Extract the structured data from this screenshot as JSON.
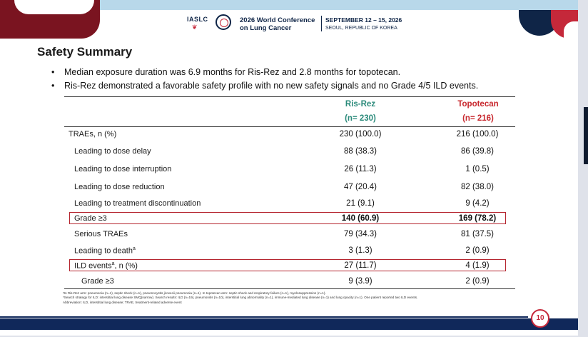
{
  "banner": {
    "org": "IASLC",
    "conference_name": "2026 World Conference on Lung Cancer",
    "dates": "SEPTEMBER 12 – 15, 2026",
    "location": "SEOUL, REPUBLIC OF KOREA"
  },
  "slide": {
    "title": "Safety Summary",
    "bullets": [
      "Median exposure duration was 6.9 months for Ris-Rez and 2.8 months for topotecan.",
      "Ris-Rez demonstrated a favorable safety profile with no new safety signals and no Grade 4/5 ILD events."
    ],
    "page_number": "10"
  },
  "table": {
    "columns": [
      {
        "name": "Ris-Rez",
        "n": "(n= 230)",
        "color": "#2a8a7a"
      },
      {
        "name": "Topotecan",
        "n": "(n= 216)",
        "color": "#c8282e"
      }
    ],
    "rows": [
      {
        "label": "TRAEs, n (%)",
        "ris_rez": "230 (100.0)",
        "topotecan": "216 (100.0)"
      },
      {
        "label": "Leading to dose delay",
        "ris_rez": "88 (38.3)",
        "topotecan": "86 (39.8)"
      },
      {
        "label": "Leading to dose interruption",
        "ris_rez": "26 (11.3)",
        "topotecan": "1 (0.5)"
      },
      {
        "label": "Leading to dose reduction",
        "ris_rez": "47 (20.4)",
        "topotecan": "82 (38.0)"
      },
      {
        "label": "Leading to treatment discontinuation",
        "ris_rez": "21 (9.1)",
        "topotecan": "9 (4.2)"
      },
      {
        "label": "Grade ≥3",
        "ris_rez": "140 (60.9)",
        "topotecan": "169 (78.2)"
      },
      {
        "label": "Serious TRAEs",
        "ris_rez": "79 (34.3)",
        "topotecan": "81 (37.5)"
      },
      {
        "label": "Leading to death",
        "label_sup": "a",
        "ris_rez": "3 (1.3)",
        "topotecan": "2 (0.9)"
      },
      {
        "label": "ILD events",
        "label_sup": "a",
        "label_suffix": ", n (%)",
        "ris_rez": "27 (11.7)",
        "topotecan": "4 (1.9)"
      },
      {
        "label": "Grade ≥3",
        "ris_rez": "9 (3.9)",
        "topotecan": "2 (0.9)"
      }
    ]
  },
  "footnotes": [
    "ᵃIn Ris-Rez arm: pneumonia (n=1), septic shock (n=1), pneumocystis jirovecii pneumonia (n=1). In topotecan arm: septic shock and respiratory failure (n=1), myelosuppression (n=1).",
    "*Search strategy for ILD: interstitial lung disease SMQ(narrow). Search results: ILD (n=19), pneumonitis (n=10), interstitial lung abnormality (n=1), immune-mediated lung disease (n=1) and lung opacity (n=1). One patient reported two ILD events.",
    "Abbreviation: ILD, interstitial lung disease; TRAE, treatment-related adverse event"
  ],
  "colors": {
    "navy": "#0f2547",
    "accent_red": "#c5283a",
    "ris_rez_teal": "#2a8a7a",
    "topotecan_red": "#c8282e",
    "highlight_box": "#b5252f"
  }
}
